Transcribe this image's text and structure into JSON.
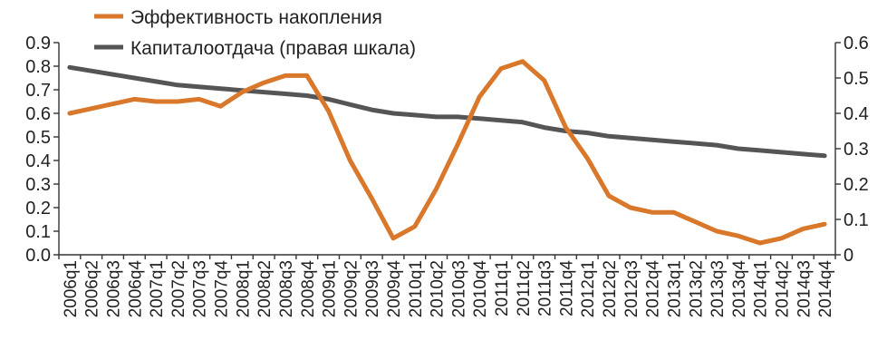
{
  "chart_data": {
    "type": "line",
    "title": "",
    "xlabel": "",
    "ylabel": "",
    "ylim_left": [
      0,
      0.9
    ],
    "ylim_right": [
      0,
      0.6
    ],
    "yticks_left": [
      "0.0",
      "0.1",
      "0.2",
      "0.3",
      "0.4",
      "0.5",
      "0.6",
      "0.7",
      "0.8",
      "0.9"
    ],
    "yticks_right": [
      "0",
      "0.1",
      "0.2",
      "0.3",
      "0.4",
      "0.5",
      "0.6"
    ],
    "grid": false,
    "legend_position": "top-left",
    "categories": [
      "2006q1",
      "2006q2",
      "2006q3",
      "2006q4",
      "2007q1",
      "2007q2",
      "2007q3",
      "2007q4",
      "2008q1",
      "2008q2",
      "2008q3",
      "2008q4",
      "2009q1",
      "2009q2",
      "2009q3",
      "2009q4",
      "2010q1",
      "2010q2",
      "2010q3",
      "2010q4",
      "2011q1",
      "2011q2",
      "2011q3",
      "2011q4",
      "2012q1",
      "2012q2",
      "2012q3",
      "2012q4",
      "2013q1",
      "2013q2",
      "2013q3",
      "2013q4",
      "2014q1",
      "2014q2",
      "2014q3",
      "2014q4"
    ],
    "series": [
      {
        "name": "Эффективность накопления",
        "axis": "left",
        "color": "#d9772a",
        "values": [
          0.6,
          0.62,
          0.64,
          0.66,
          0.65,
          0.65,
          0.66,
          0.63,
          0.69,
          0.73,
          0.76,
          0.76,
          0.61,
          0.4,
          0.24,
          0.07,
          0.12,
          0.28,
          0.47,
          0.67,
          0.79,
          0.82,
          0.74,
          0.54,
          0.41,
          0.25,
          0.2,
          0.18,
          0.18,
          0.14,
          0.1,
          0.08,
          0.05,
          0.07,
          0.11,
          0.13
        ]
      },
      {
        "name": "Капиталоотдача (правая шкала)",
        "axis": "right",
        "color": "#555555",
        "values": [
          0.53,
          0.52,
          0.51,
          0.5,
          0.49,
          0.48,
          0.475,
          0.47,
          0.465,
          0.46,
          0.455,
          0.45,
          0.44,
          0.425,
          0.41,
          0.4,
          0.395,
          0.39,
          0.39,
          0.385,
          0.38,
          0.375,
          0.36,
          0.35,
          0.345,
          0.335,
          0.33,
          0.325,
          0.32,
          0.315,
          0.31,
          0.3,
          0.295,
          0.29,
          0.285,
          0.28
        ]
      }
    ]
  }
}
